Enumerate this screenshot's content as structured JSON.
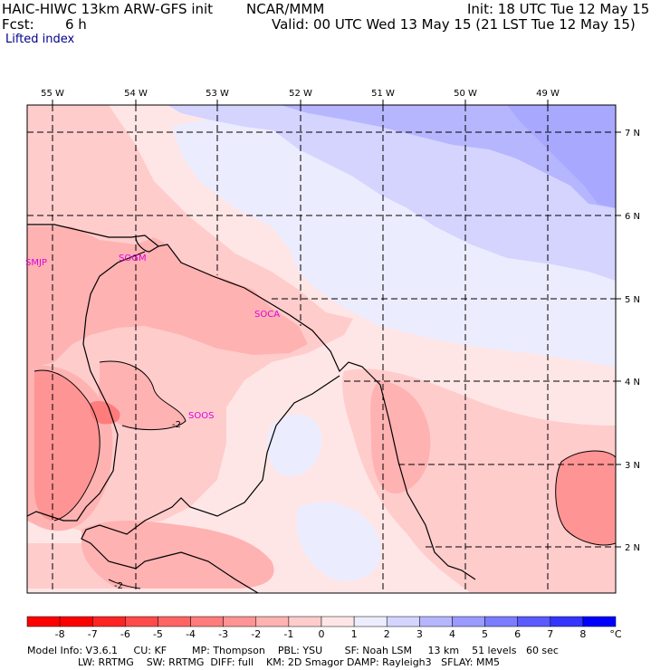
{
  "header": {
    "model": "HAIC-HIWC 13km ARW-GFS init",
    "org": "NCAR/MMM",
    "fcst_label": "Fcst:",
    "fcst_value": "6 h",
    "init": "Init: 18 UTC Tue 12 May 15",
    "valid": "Valid: 00 UTC Wed 13 May 15 (21 LST Tue 12 May 15)",
    "field": "Lifted index"
  },
  "axes": {
    "lon_labels": [
      "55 W",
      "54 W",
      "53 W",
      "52 W",
      "51 W",
      "50 W",
      "49 W"
    ],
    "lat_labels": [
      "7 N",
      "6 N",
      "5 N",
      "4 N",
      "3 N",
      "2 N"
    ]
  },
  "stations": [
    "SMJP",
    "SOGM",
    "SOCA",
    "SOOS"
  ],
  "contour_labels": [
    "-2",
    "-2"
  ],
  "colorbar": {
    "labels": [
      "-8",
      "-7",
      "-6",
      "-5",
      "-4",
      "-3",
      "-2",
      "-1",
      "0",
      "1",
      "2",
      "3",
      "4",
      "5",
      "6",
      "7",
      "8"
    ],
    "unit": "°C",
    "colors": [
      "#ff0000",
      "#ff2424",
      "#ff4a4a",
      "#ff6464",
      "#ff7c7c",
      "#ff9494",
      "#ffb2b2",
      "#ffcccc",
      "#ffe6e6",
      "#ececff",
      "#d4d4ff",
      "#b6b6ff",
      "#9a9aff",
      "#7c7cff",
      "#5a5aff",
      "#3434ff",
      "#0000ff"
    ]
  },
  "footer": {
    "line1": "Model Info: V3.6.1     CU: KF        MP: Thompson    PBL: YSU       SF: Noah LSM     13 km    51 levels   60 sec",
    "line2": "                LW: RRTMG    SW: RRTMG  DIFF: full    KM: 2D Smagor DAMP: Rayleigh3   SFLAY: MM5"
  }
}
